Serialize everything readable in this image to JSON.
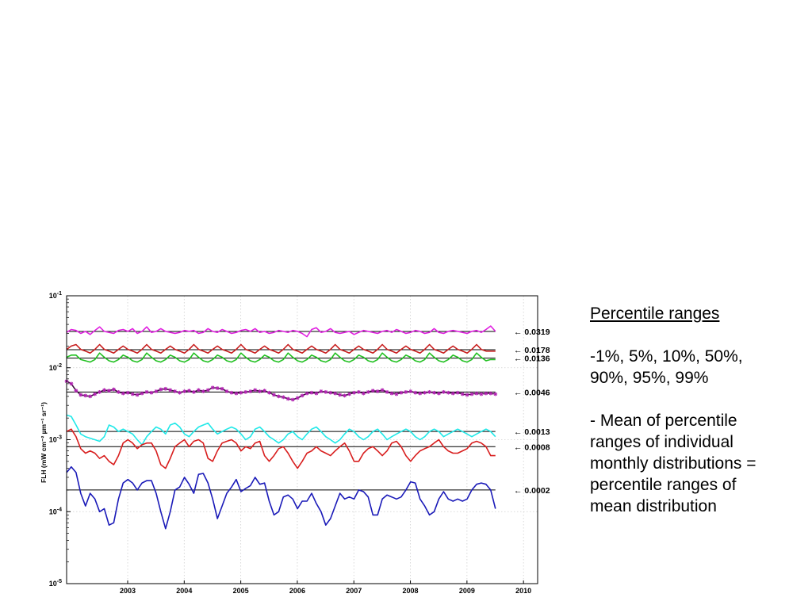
{
  "side_panel": {
    "title": "Percentile ranges",
    "line1": "-1%, 5%, 10%, 50%,",
    "line2": "90%, 95%, 99%",
    "body_lines": [
      "- Mean of percentile",
      "ranges of individual",
      "monthly distributions =",
      "percentile ranges of",
      "mean distribution"
    ]
  },
  "chart_data": {
    "type": "line",
    "title": "",
    "xlabel": "",
    "ylabel": "FLH (mW cm⁻² µm⁻¹ sr⁻¹)",
    "yscale": "log",
    "ylim": [
      1e-05,
      0.1
    ],
    "xlim": [
      2002.42,
      2010.75
    ],
    "grid": true,
    "x_tick_labels": [
      "2003",
      "2004",
      "2005",
      "2006",
      "2007",
      "2008",
      "2009",
      "2010"
    ],
    "y_tick_labels": [
      {
        "base": "10",
        "exp": "-1"
      },
      {
        "base": "10",
        "exp": "-2"
      },
      {
        "base": "10",
        "exp": "-3"
      },
      {
        "base": "10",
        "exp": "-4"
      },
      {
        "base": "10",
        "exp": "-5"
      }
    ],
    "x_start": "2002-07",
    "x_step_months": 1,
    "series": [
      {
        "color": "#e020e0",
        "marker": "none",
        "values": [
          0.031,
          0.034,
          0.033,
          0.03,
          0.032,
          0.029,
          0.033,
          0.037,
          0.032,
          0.031,
          0.03,
          0.033,
          0.034,
          0.032,
          0.035,
          0.03,
          0.032,
          0.037,
          0.031,
          0.032,
          0.035,
          0.032,
          0.031,
          0.03,
          0.031,
          0.033,
          0.032,
          0.033,
          0.03,
          0.031,
          0.035,
          0.032,
          0.031,
          0.034,
          0.032,
          0.03,
          0.031,
          0.033,
          0.034,
          0.032,
          0.035,
          0.031,
          0.032,
          0.03,
          0.031,
          0.033,
          0.032,
          0.031,
          0.033,
          0.032,
          0.03,
          0.027,
          0.034,
          0.036,
          0.031,
          0.032,
          0.035,
          0.031,
          0.03,
          0.031,
          0.032,
          0.029,
          0.031,
          0.033,
          0.032,
          0.031,
          0.03,
          0.032,
          0.033,
          0.031,
          0.034,
          0.032,
          0.03,
          0.031,
          0.033,
          0.032,
          0.03,
          0.031,
          0.035,
          0.031,
          0.03,
          0.032,
          0.033,
          0.032,
          0.031,
          0.03,
          0.032,
          0.033,
          0.031,
          0.034,
          0.038,
          0.032
        ]
      },
      {
        "color": "#c81e1e",
        "marker": "none",
        "values": [
          0.018,
          0.02,
          0.021,
          0.018,
          0.017,
          0.016,
          0.018,
          0.021,
          0.018,
          0.017,
          0.016,
          0.018,
          0.02,
          0.018,
          0.017,
          0.016,
          0.018,
          0.021,
          0.018,
          0.017,
          0.016,
          0.018,
          0.02,
          0.018,
          0.017,
          0.016,
          0.018,
          0.021,
          0.018,
          0.017,
          0.016,
          0.018,
          0.02,
          0.018,
          0.017,
          0.016,
          0.018,
          0.021,
          0.018,
          0.017,
          0.016,
          0.018,
          0.02,
          0.018,
          0.017,
          0.016,
          0.018,
          0.021,
          0.018,
          0.017,
          0.016,
          0.018,
          0.02,
          0.018,
          0.017,
          0.016,
          0.018,
          0.021,
          0.018,
          0.017,
          0.016,
          0.018,
          0.02,
          0.018,
          0.017,
          0.016,
          0.018,
          0.021,
          0.018,
          0.017,
          0.016,
          0.018,
          0.02,
          0.018,
          0.017,
          0.016,
          0.018,
          0.021,
          0.018,
          0.017,
          0.016,
          0.018,
          0.02,
          0.018,
          0.017,
          0.016,
          0.018,
          0.021,
          0.018,
          0.017,
          0.017,
          0.017
        ]
      },
      {
        "color": "#20c020",
        "marker": "none",
        "values": [
          0.014,
          0.015,
          0.015,
          0.013,
          0.0125,
          0.012,
          0.013,
          0.016,
          0.014,
          0.0125,
          0.012,
          0.013,
          0.015,
          0.014,
          0.0125,
          0.012,
          0.013,
          0.016,
          0.014,
          0.0125,
          0.012,
          0.013,
          0.015,
          0.014,
          0.0125,
          0.012,
          0.013,
          0.016,
          0.014,
          0.0125,
          0.012,
          0.013,
          0.015,
          0.014,
          0.0125,
          0.012,
          0.013,
          0.016,
          0.014,
          0.0125,
          0.012,
          0.013,
          0.015,
          0.014,
          0.0125,
          0.012,
          0.013,
          0.016,
          0.014,
          0.0125,
          0.012,
          0.013,
          0.015,
          0.014,
          0.0125,
          0.012,
          0.013,
          0.016,
          0.014,
          0.0125,
          0.012,
          0.013,
          0.015,
          0.014,
          0.0125,
          0.012,
          0.013,
          0.016,
          0.014,
          0.0125,
          0.012,
          0.013,
          0.015,
          0.014,
          0.0125,
          0.012,
          0.013,
          0.016,
          0.014,
          0.0125,
          0.012,
          0.013,
          0.015,
          0.014,
          0.0125,
          0.012,
          0.013,
          0.016,
          0.014,
          0.0125,
          0.013,
          0.013
        ]
      },
      {
        "color": "#3a0f3a",
        "marker": "star",
        "marker_color": "#b020b0",
        "values": [
          0.0065,
          0.006,
          0.0048,
          0.0042,
          0.0041,
          0.004,
          0.0043,
          0.0046,
          0.0049,
          0.0048,
          0.005,
          0.0046,
          0.0044,
          0.0045,
          0.0043,
          0.0042,
          0.0044,
          0.0046,
          0.0045,
          0.0047,
          0.005,
          0.0051,
          0.0049,
          0.0047,
          0.0045,
          0.0047,
          0.0048,
          0.0046,
          0.0049,
          0.0047,
          0.0049,
          0.0053,
          0.0052,
          0.0051,
          0.0047,
          0.0045,
          0.0044,
          0.0045,
          0.0046,
          0.0047,
          0.0049,
          0.0047,
          0.0048,
          0.0045,
          0.0042,
          0.004,
          0.0039,
          0.0037,
          0.0036,
          0.0038,
          0.0041,
          0.0044,
          0.0045,
          0.0044,
          0.0047,
          0.0046,
          0.0045,
          0.0044,
          0.0042,
          0.0041,
          0.0043,
          0.0045,
          0.0046,
          0.0044,
          0.0046,
          0.0048,
          0.0047,
          0.0049,
          0.0046,
          0.0044,
          0.0043,
          0.0045,
          0.0046,
          0.0047,
          0.0045,
          0.0044,
          0.0045,
          0.0046,
          0.0045,
          0.0044,
          0.0046,
          0.0045,
          0.0044,
          0.0045,
          0.0043,
          0.0042,
          0.0043,
          0.0044,
          0.0043,
          0.0044,
          0.0044,
          0.0043
        ]
      },
      {
        "color": "#20e8e8",
        "marker": "none",
        "values": [
          0.0022,
          0.0021,
          0.0016,
          0.0012,
          0.0011,
          0.00105,
          0.001,
          0.00095,
          0.0011,
          0.0016,
          0.0015,
          0.0013,
          0.0014,
          0.0013,
          0.0012,
          0.001,
          0.00085,
          0.0011,
          0.0013,
          0.0015,
          0.0014,
          0.0012,
          0.0016,
          0.0017,
          0.0015,
          0.0012,
          0.0011,
          0.0013,
          0.0015,
          0.0016,
          0.0017,
          0.0014,
          0.0012,
          0.0013,
          0.0014,
          0.0015,
          0.0014,
          0.0012,
          0.001,
          0.0011,
          0.0014,
          0.0015,
          0.0013,
          0.0011,
          0.001,
          0.0009,
          0.001,
          0.0012,
          0.0013,
          0.0011,
          0.001,
          0.0012,
          0.0014,
          0.0015,
          0.0013,
          0.0011,
          0.001,
          0.0009,
          0.001,
          0.0012,
          0.0014,
          0.0013,
          0.0011,
          0.001,
          0.0011,
          0.0013,
          0.0014,
          0.0012,
          0.001,
          0.0011,
          0.0012,
          0.0013,
          0.0014,
          0.0013,
          0.0011,
          0.001,
          0.0011,
          0.0013,
          0.0014,
          0.0013,
          0.0011,
          0.0012,
          0.0013,
          0.0014,
          0.0013,
          0.0012,
          0.0011,
          0.0012,
          0.0013,
          0.0014,
          0.0013,
          0.0011
        ]
      },
      {
        "color": "#d81e1e",
        "marker": "none",
        "values": [
          0.0013,
          0.0014,
          0.0011,
          0.00075,
          0.00065,
          0.0007,
          0.00065,
          0.00055,
          0.0006,
          0.0005,
          0.00045,
          0.0006,
          0.0009,
          0.001,
          0.0009,
          0.00075,
          0.00085,
          0.0009,
          0.0009,
          0.0007,
          0.00045,
          0.0004,
          0.00055,
          0.0008,
          0.0009,
          0.001,
          0.0008,
          0.00095,
          0.001,
          0.0009,
          0.00055,
          0.0005,
          0.0007,
          0.0009,
          0.00095,
          0.001,
          0.0009,
          0.0007,
          0.0008,
          0.00075,
          0.0009,
          0.00095,
          0.0006,
          0.0005,
          0.0006,
          0.00075,
          0.0008,
          0.00065,
          0.0005,
          0.0004,
          0.0005,
          0.00065,
          0.0007,
          0.0008,
          0.0007,
          0.00065,
          0.0006,
          0.0007,
          0.0008,
          0.0009,
          0.0007,
          0.0005,
          0.0005,
          0.00065,
          0.00075,
          0.0008,
          0.0007,
          0.0006,
          0.0007,
          0.0009,
          0.00095,
          0.0008,
          0.0006,
          0.0005,
          0.0006,
          0.0007,
          0.00075,
          0.0008,
          0.0009,
          0.001,
          0.0008,
          0.0007,
          0.00065,
          0.00065,
          0.0007,
          0.00075,
          0.0009,
          0.00095,
          0.0009,
          0.0008,
          0.0006,
          0.0006
        ]
      },
      {
        "color": "#1a1ab8",
        "marker": "none",
        "values": [
          0.00035,
          0.00042,
          0.00035,
          0.00018,
          0.00012,
          0.00018,
          0.00015,
          0.0001,
          0.00011,
          6.5e-05,
          7e-05,
          0.00015,
          0.00025,
          0.00028,
          0.00025,
          0.0002,
          0.00025,
          0.00027,
          0.00027,
          0.00018,
          0.0001,
          5.8e-05,
          0.0001,
          0.0002,
          0.00022,
          0.0003,
          0.00024,
          0.00018,
          0.00033,
          0.00034,
          0.00025,
          0.00015,
          8e-05,
          0.00012,
          0.00018,
          0.00022,
          0.00028,
          0.00019,
          0.00021,
          0.00023,
          0.0003,
          0.00024,
          0.00025,
          0.00014,
          9e-05,
          0.0001,
          0.00016,
          0.00017,
          0.00015,
          0.00011,
          0.00014,
          0.00014,
          0.00018,
          0.00013,
          0.0001,
          6.5e-05,
          8e-05,
          0.00012,
          0.00018,
          0.00015,
          0.00016,
          0.00015,
          0.0002,
          0.00019,
          0.00016,
          9e-05,
          9e-05,
          0.00015,
          0.00017,
          0.00016,
          0.00015,
          0.00016,
          0.0002,
          0.00026,
          0.00025,
          0.00015,
          0.00012,
          9e-05,
          0.0001,
          0.00015,
          0.00019,
          0.00015,
          0.00014,
          0.00015,
          0.00014,
          0.00015,
          0.0002,
          0.00024,
          0.00025,
          0.00024,
          0.0002,
          0.00011
        ]
      }
    ],
    "reference_lines": [
      {
        "value": 0.0319,
        "label": "← 0.0319"
      },
      {
        "value": 0.0178,
        "label": "← 0.0178"
      },
      {
        "value": 0.0136,
        "label": "← 0.0136"
      },
      {
        "value": 0.0046,
        "label": "← 0.0046"
      },
      {
        "value": 0.0013,
        "label": "← 0.0013"
      },
      {
        "value": 0.0008,
        "label": "← 0.0008"
      },
      {
        "value": 0.0002,
        "label": "← 0.0002"
      }
    ]
  }
}
